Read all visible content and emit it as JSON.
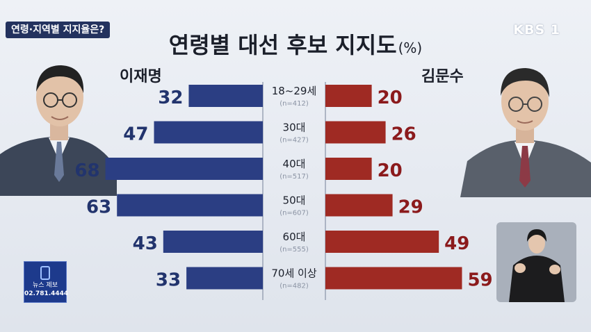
{
  "header": {
    "topic": "연령·지역별 지지율은?",
    "broadcaster": "KBS 1"
  },
  "chart_data": {
    "type": "bar",
    "title": "연령별 대선 후보 지지도",
    "unit": "(%)",
    "categories": [
      "18~29세",
      "30대",
      "40대",
      "50대",
      "60대",
      "70세 이상"
    ],
    "sample_sizes": [
      "(n=412)",
      "(n=427)",
      "(n=517)",
      "(n=607)",
      "(n=555)",
      "(n=482)"
    ],
    "series": [
      {
        "name": "이재명",
        "values": [
          32,
          47,
          68,
          63,
          43,
          33
        ],
        "color": "#2b3e83"
      },
      {
        "name": "김문수",
        "values": [
          20,
          26,
          20,
          29,
          49,
          59
        ],
        "color": "#9f2a23"
      }
    ]
  },
  "news_tip": {
    "label": "뉴스 제보",
    "phone": "02.781.4444"
  },
  "colors": {
    "blue": "#2b3e83",
    "red": "#9f2a23",
    "navy_badge": "#23325e"
  }
}
